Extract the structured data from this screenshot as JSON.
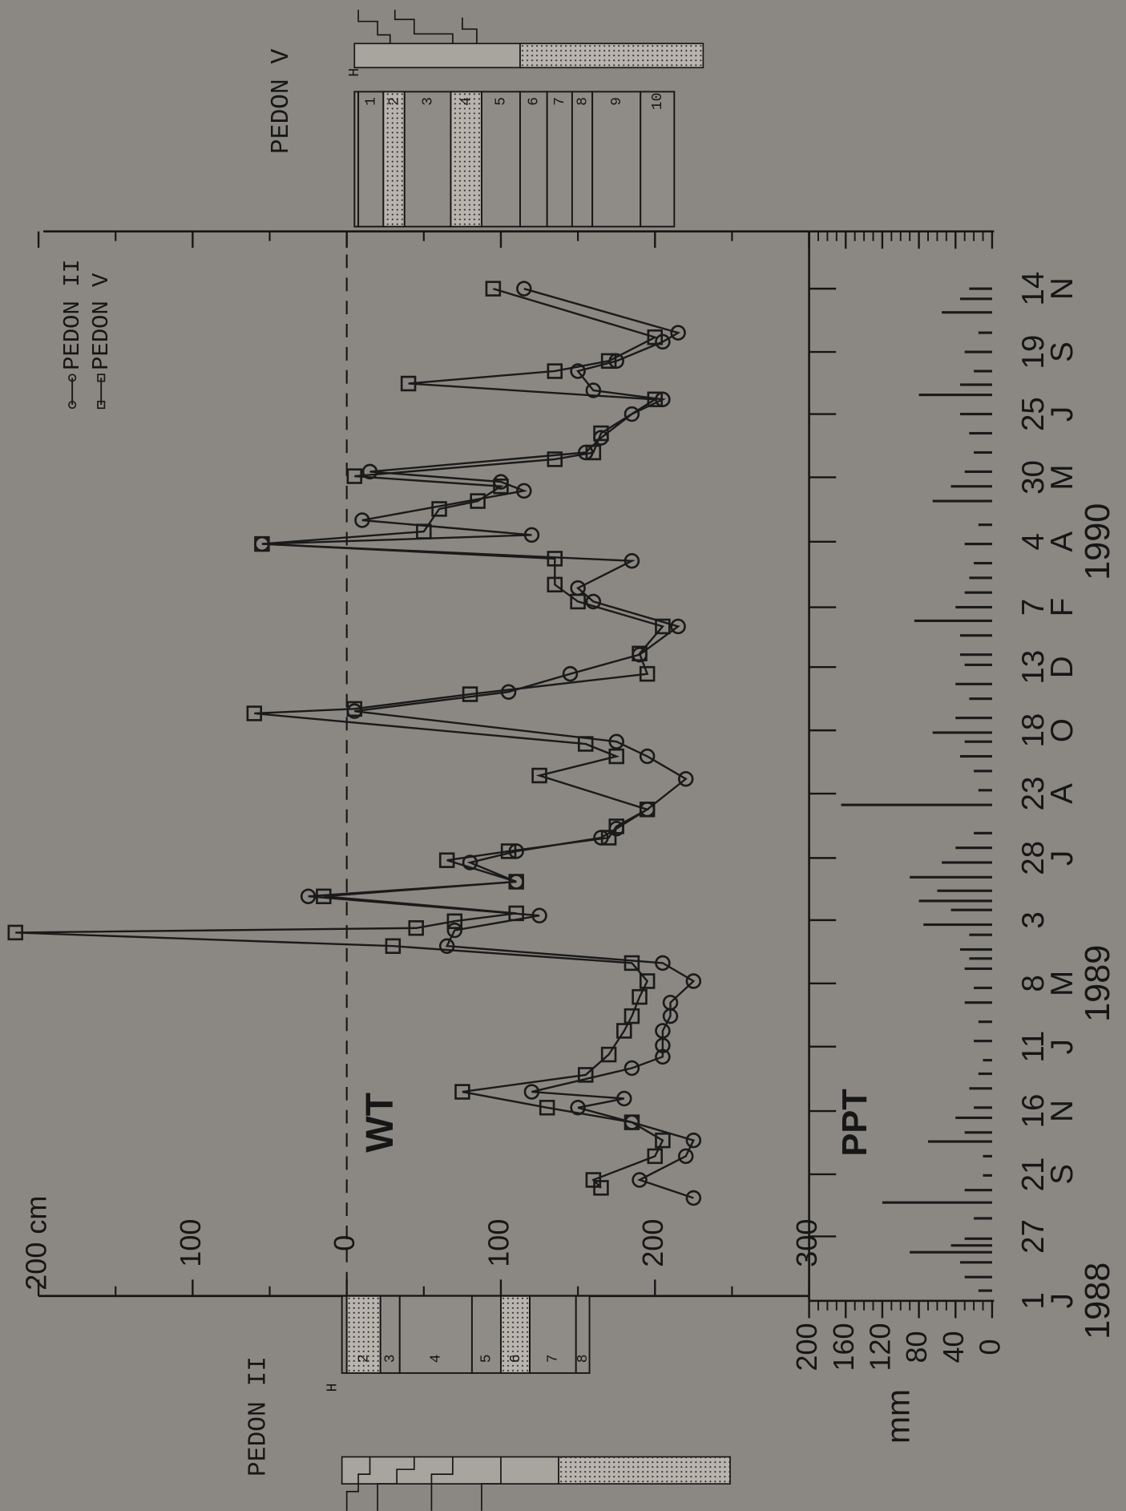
{
  "chart_data": [
    {
      "type": "line",
      "annotation": "WT",
      "xlim": [
        "1988-07-01",
        "1991-02-01"
      ],
      "xticks": [
        {
          "value": "1988-07-01",
          "label": "1"
        },
        {
          "value": "1988-08-27",
          "label": "27"
        },
        {
          "value": "1988-10-21",
          "label": "21"
        },
        {
          "value": "1988-12-16",
          "label": "16"
        },
        {
          "value": "1989-02-11",
          "label": "11"
        },
        {
          "value": "1989-04-08",
          "label": "8"
        },
        {
          "value": "1989-06-03",
          "label": "3"
        },
        {
          "value": "1989-07-28",
          "label": "28"
        },
        {
          "value": "1989-09-23",
          "label": "23"
        },
        {
          "value": "1989-11-18",
          "label": "18"
        },
        {
          "value": "1990-01-13",
          "label": "13"
        },
        {
          "value": "1990-03-07",
          "label": "7"
        },
        {
          "value": "1990-05-04",
          "label": "4"
        },
        {
          "value": "1990-06-30",
          "label": "30"
        },
        {
          "value": "1990-08-25",
          "label": "25"
        },
        {
          "value": "1990-10-19",
          "label": "19"
        },
        {
          "value": "1990-12-14",
          "label": "14"
        }
      ],
      "xtick_months": [
        "J",
        null,
        "S",
        "N",
        "J",
        "M",
        null,
        "J",
        "A",
        "O",
        "D",
        "F",
        "A",
        "M",
        "J",
        "S",
        "N"
      ],
      "xtick_years": [
        "1988",
        null,
        null,
        null,
        null,
        "1989",
        null,
        null,
        null,
        null,
        null,
        null,
        "1990",
        null,
        null,
        null,
        null
      ],
      "ylim": [
        -200,
        300
      ],
      "yticks": [
        {
          "value": -200,
          "label": "200 cm"
        },
        {
          "value": -100,
          "label": "100"
        },
        0,
        100,
        200,
        300
      ],
      "yminorticks": [
        -150,
        -50,
        50,
        150,
        250
      ],
      "series": [
        {
          "name": "PEDON II",
          "marker": "circle",
          "color": "#1a1a1a",
          "x": [
            "1988-09-30",
            "1988-10-16",
            "1988-11-06",
            "1988-11-20",
            "1988-12-06",
            "1988-12-19",
            "1988-12-27",
            "1989-01-02",
            "1989-01-23",
            "1989-02-02",
            "1989-02-12",
            "1989-02-25",
            "1989-03-10",
            "1989-03-22",
            "1989-04-10",
            "1989-04-26",
            "1989-05-11",
            "1989-05-25",
            "1989-06-07",
            "1989-06-24",
            "1989-07-07",
            "1989-07-24",
            "1989-08-03",
            "1989-08-15",
            "1989-08-23",
            "1989-09-09",
            "1989-10-06",
            "1989-10-26",
            "1989-11-08",
            "1989-12-05",
            "1989-12-22",
            "1990-01-07",
            "1990-01-24",
            "1990-02-18",
            "1990-03-12",
            "1990-03-24",
            "1990-04-17",
            "1990-05-02",
            "1990-05-10",
            "1990-05-23",
            "1990-06-18",
            "1990-06-26",
            "1990-07-05",
            "1990-07-22",
            "1990-08-04",
            "1990-08-25",
            "1990-09-07",
            "1990-09-15",
            "1990-10-02",
            "1990-10-11",
            "1990-10-28",
            "1990-11-05",
            "1990-12-14"
          ],
          "values": [
            225,
            190,
            220,
            225,
            185,
            150,
            180,
            120,
            185,
            205,
            205,
            205,
            210,
            210,
            225,
            205,
            65,
            70,
            125,
            -25,
            110,
            80,
            110,
            165,
            175,
            195,
            220,
            195,
            175,
            5,
            105,
            145,
            190,
            215,
            160,
            150,
            185,
            -55,
            120,
            10,
            115,
            100,
            15,
            155,
            165,
            185,
            205,
            160,
            150,
            175,
            205,
            215,
            115
          ]
        },
        {
          "name": "PEDON V",
          "marker": "square",
          "color": "#1a1a1a",
          "x": [
            "1988-10-09",
            "1988-10-16",
            "1988-11-06",
            "1988-11-20",
            "1988-12-06",
            "1988-12-19",
            "1989-01-02",
            "1989-01-17",
            "1989-02-04",
            "1989-02-25",
            "1989-03-10",
            "1989-03-27",
            "1989-04-10",
            "1989-04-26",
            "1989-05-11",
            "1989-05-23",
            "1989-05-27",
            "1989-06-02",
            "1989-06-09",
            "1989-06-24",
            "1989-07-07",
            "1989-07-26",
            "1989-08-03",
            "1989-08-15",
            "1989-08-25",
            "1989-09-09",
            "1989-10-09",
            "1989-10-26",
            "1989-11-06",
            "1989-12-03",
            "1989-12-07",
            "1989-12-20",
            "1990-01-07",
            "1990-01-25",
            "1990-02-18",
            "1990-03-12",
            "1990-03-27",
            "1990-04-19",
            "1990-05-02",
            "1990-05-13",
            "1990-06-02",
            "1990-06-09",
            "1990-06-22",
            "1990-07-01",
            "1990-07-16",
            "1990-07-22",
            "1990-08-08",
            "1990-09-07",
            "1990-09-21",
            "1990-10-02",
            "1990-10-11",
            "1990-11-01",
            "1990-12-14"
          ],
          "values": [
            165,
            160,
            200,
            205,
            185,
            130,
            75,
            155,
            170,
            180,
            185,
            190,
            195,
            185,
            30,
            -215,
            45,
            70,
            110,
            -15,
            110,
            65,
            105,
            170,
            175,
            195,
            125,
            175,
            155,
            -60,
            5,
            80,
            195,
            190,
            205,
            150,
            135,
            135,
            -55,
            50,
            60,
            85,
            100,
            5,
            135,
            160,
            165,
            200,
            40,
            135,
            170,
            200,
            95
          ]
        }
      ]
    },
    {
      "type": "bar",
      "title": "PPT",
      "y_label": "mm",
      "color": "#1a1a1a",
      "x": [
        "1988-07-10",
        "1988-07-22",
        "1988-08-04",
        "1988-08-13",
        "1988-08-19",
        "1988-08-25",
        "1988-09-12",
        "1988-09-26",
        "1988-10-07",
        "1988-10-20",
        "1988-11-06",
        "1988-11-19",
        "1988-11-27",
        "1988-12-10",
        "1988-12-19",
        "1989-01-05",
        "1989-01-18",
        "1989-01-30",
        "1989-02-16",
        "1989-03-05",
        "1989-03-22",
        "1989-04-04",
        "1989-04-21",
        "1989-04-30",
        "1989-05-08",
        "1989-05-21",
        "1989-05-30",
        "1989-06-12",
        "1989-06-20",
        "1989-06-29",
        "1989-07-11",
        "1989-07-24",
        "1989-08-06",
        "1989-08-19",
        "1989-09-13",
        "1989-09-26",
        "1989-10-13",
        "1989-10-26",
        "1989-11-08",
        "1989-11-16",
        "1989-11-29",
        "1989-12-16",
        "1989-12-29",
        "1990-01-15",
        "1990-01-24",
        "1990-02-10",
        "1990-02-23",
        "1990-03-07",
        "1990-03-20",
        "1990-04-02",
        "1990-04-15",
        "1990-05-02",
        "1990-05-19",
        "1990-06-09",
        "1990-06-22",
        "1990-07-05",
        "1990-07-22",
        "1990-08-08",
        "1990-08-25",
        "1990-09-11",
        "1990-09-20",
        "1990-10-02",
        "1990-10-19",
        "1990-11-05",
        "1990-11-23",
        "1990-12-05",
        "1990-12-14"
      ],
      "values": [
        15,
        30,
        35,
        90,
        45,
        30,
        20,
        120,
        30,
        10,
        10,
        70,
        30,
        40,
        20,
        25,
        15,
        10,
        20,
        15,
        30,
        20,
        30,
        25,
        35,
        25,
        75,
        45,
        80,
        60,
        90,
        55,
        40,
        20,
        165,
        15,
        20,
        35,
        30,
        65,
        40,
        25,
        40,
        30,
        35,
        35,
        85,
        40,
        30,
        25,
        20,
        30,
        15,
        65,
        45,
        30,
        20,
        25,
        35,
        80,
        35,
        20,
        30,
        15,
        55,
        35,
        25
      ],
      "ylim": [
        0,
        200
      ],
      "yticks": [
        0,
        40,
        80,
        120,
        160,
        200
      ],
      "yminorticks": [
        10,
        20,
        30,
        50,
        60,
        70,
        90,
        100,
        110,
        130,
        140,
        150,
        170,
        180,
        190
      ]
    }
  ],
  "pedons": [
    {
      "title": "PEDON II",
      "horizons": [
        "H",
        "2",
        "3",
        "4",
        "5",
        "6",
        "7",
        "8"
      ]
    },
    {
      "title": "PEDON V",
      "horizons": [
        "H",
        "1",
        "2",
        "3",
        "4",
        "5",
        "6",
        "7",
        "8",
        "9",
        "10"
      ]
    }
  ]
}
